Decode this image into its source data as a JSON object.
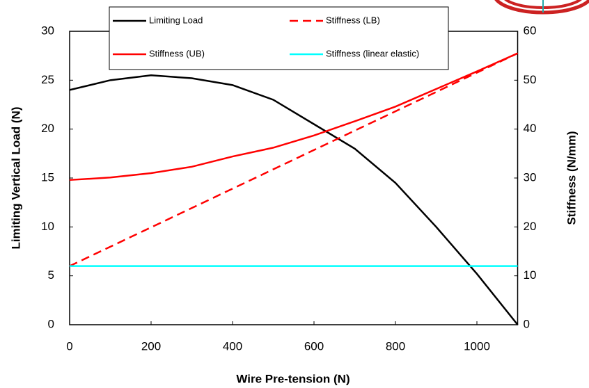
{
  "chart_data": {
    "type": "line",
    "x_label": "Wire Pre-tension (N)",
    "y_label": "Limiting Vertical Load (N)",
    "y2_label": "Stiffness (N/mm)",
    "xlim": [
      0,
      1100
    ],
    "xticks": [
      0,
      200,
      400,
      600,
      800,
      1000
    ],
    "ylim": [
      0,
      30
    ],
    "yticks": [
      0,
      5,
      10,
      15,
      20,
      25,
      30
    ],
    "y2lim": [
      0,
      60
    ],
    "y2ticks": [
      0,
      10,
      20,
      30,
      40,
      50,
      60
    ],
    "legend": "top",
    "series": [
      {
        "name": "Limiting Load",
        "color": "#000000",
        "dashed": false,
        "x": [
          0,
          100,
          200,
          300,
          400,
          500,
          600,
          700,
          800,
          900,
          1000,
          1100
        ],
        "values": [
          24,
          25,
          25.5,
          25.2,
          24.5,
          23,
          20.5,
          18,
          14.5,
          10,
          5.2,
          0
        ]
      },
      {
        "name": "Stiffness (LB)",
        "color": "#ff0000",
        "dashed": true,
        "axis": "y2",
        "x": [
          0,
          1100
        ],
        "values": [
          12,
          55.5
        ]
      },
      {
        "name": "Stiffness (UB)",
        "color": "#ff0000",
        "dashed": false,
        "axis": "y2",
        "x": [
          0,
          100,
          200,
          300,
          400,
          500,
          600,
          700,
          800,
          900,
          1000,
          1100
        ],
        "values": [
          29.6,
          30.1,
          31,
          32.3,
          34.4,
          36.2,
          38.7,
          41.6,
          44.6,
          48.2,
          51.8,
          55.5
        ]
      },
      {
        "name": "Stiffness (linear elastic)",
        "color": "#00ffff",
        "dashed": false,
        "axis": "y2",
        "x": [
          0,
          1100
        ],
        "values": [
          12,
          12
        ]
      }
    ]
  }
}
